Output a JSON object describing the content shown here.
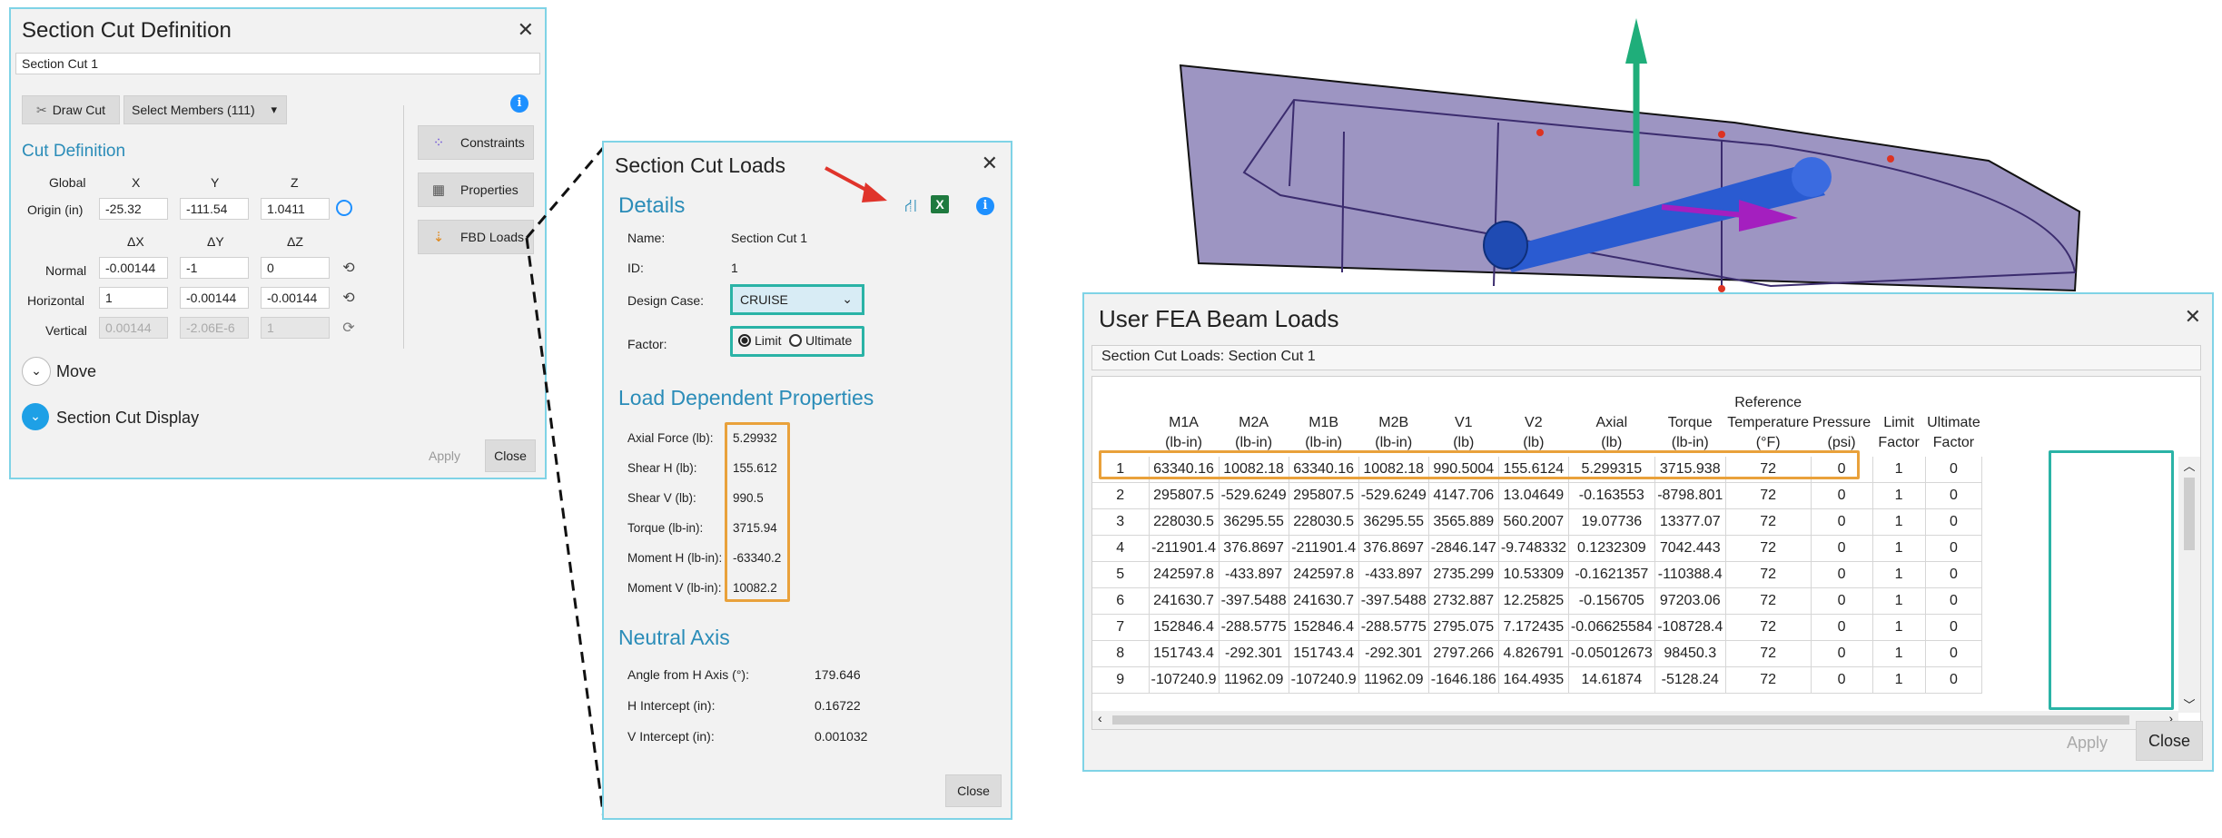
{
  "section_cut_definition": {
    "title": "Section Cut Definition",
    "name_value": "Section Cut 1",
    "draw_cut_label": "Draw Cut",
    "select_members_label": "Select Members (111)",
    "cut_definition_header": "Cut Definition",
    "col_global": "Global",
    "col_x": "X",
    "col_y": "Y",
    "col_z": "Z",
    "col_dx": "ΔX",
    "col_dy": "ΔY",
    "col_dz": "ΔZ",
    "origin_label": "Origin  (in)",
    "origin": [
      "-25.32",
      "-111.54",
      "1.0411"
    ],
    "normal_label": "Normal",
    "normal": [
      "-0.00144",
      "-1",
      "0"
    ],
    "horizontal_label": "Horizontal",
    "horizontal": [
      "1",
      "-0.00144",
      "-0.00144"
    ],
    "vertical_label": "Vertical",
    "vertical": [
      "0.00144",
      "-2.06E-6",
      "1"
    ],
    "constraints_label": "Constraints",
    "properties_label": "Properties",
    "fbd_loads_label": "FBD Loads",
    "move_label": "Move",
    "display_label": "Section Cut Display",
    "apply_label": "Apply",
    "close_label": "Close"
  },
  "section_cut_loads": {
    "title": "Section Cut Loads",
    "details_header": "Details",
    "name_label": "Name:",
    "name_value": "Section Cut 1",
    "id_label": "ID:",
    "id_value": "1",
    "design_case_label": "Design Case:",
    "design_case_value": "CRUISE",
    "factor_label": "Factor:",
    "factor_limit": "Limit",
    "factor_ultimate": "Ultimate",
    "ldp_header": "Load Dependent Properties",
    "ldp_rows": [
      {
        "label": "Axial Force (lb):",
        "value": "5.29932"
      },
      {
        "label": "Shear H (lb):",
        "value": "155.612"
      },
      {
        "label": "Shear V (lb):",
        "value": "990.5"
      },
      {
        "label": "Torque (lb-in):",
        "value": "3715.94"
      },
      {
        "label": "Moment H (lb-in):",
        "value": "-63340.2"
      },
      {
        "label": "Moment V (lb-in):",
        "value": "10082.2"
      }
    ],
    "neutral_header": "Neutral Axis",
    "neutral_rows": [
      {
        "label": "Angle from H Axis (°):",
        "value": "179.646"
      },
      {
        "label": "H Intercept (in):",
        "value": "0.16722"
      },
      {
        "label": "V Intercept (in):",
        "value": "0.001032"
      }
    ],
    "close_label": "Close"
  },
  "user_fea_beam_loads": {
    "title": "User FEA Beam Loads",
    "subtitle": "Section Cut Loads: Section Cut 1",
    "columns": [
      {
        "l1": "",
        "l2": "",
        "l3": ""
      },
      {
        "l1": "",
        "l2": "M1A",
        "l3": "(lb-in)"
      },
      {
        "l1": "",
        "l2": "M2A",
        "l3": "(lb-in)"
      },
      {
        "l1": "",
        "l2": "M1B",
        "l3": "(lb-in)"
      },
      {
        "l1": "",
        "l2": "M2B",
        "l3": "(lb-in)"
      },
      {
        "l1": "",
        "l2": "V1",
        "l3": "(lb)"
      },
      {
        "l1": "",
        "l2": "V2",
        "l3": "(lb)"
      },
      {
        "l1": "",
        "l2": "Axial",
        "l3": "(lb)"
      },
      {
        "l1": "",
        "l2": "Torque",
        "l3": "(lb-in)"
      },
      {
        "l1": "Reference",
        "l2": "Temperature",
        "l3": "(°F)"
      },
      {
        "l1": "",
        "l2": "Pressure",
        "l3": "(psi)"
      },
      {
        "l1": "",
        "l2": "Limit",
        "l3": "Factor"
      },
      {
        "l1": "",
        "l2": "Ultimate",
        "l3": "Factor"
      }
    ],
    "rows": [
      [
        "1",
        "63340.16",
        "10082.18",
        "63340.16",
        "10082.18",
        "990.5004",
        "155.6124",
        "5.299315",
        "3715.938",
        "72",
        "0",
        "1",
        "0"
      ],
      [
        "2",
        "295807.5",
        "-529.6249",
        "295807.5",
        "-529.6249",
        "4147.706",
        "13.04649",
        "-0.163553",
        "-8798.801",
        "72",
        "0",
        "1",
        "0"
      ],
      [
        "3",
        "228030.5",
        "36295.55",
        "228030.5",
        "36295.55",
        "3565.889",
        "560.2007",
        "19.07736",
        "13377.07",
        "72",
        "0",
        "1",
        "0"
      ],
      [
        "4",
        "-211901.4",
        "376.8697",
        "-211901.4",
        "376.8697",
        "-2846.147",
        "-9.748332",
        "0.1232309",
        "7042.443",
        "72",
        "0",
        "1",
        "0"
      ],
      [
        "5",
        "242597.8",
        "-433.897",
        "242597.8",
        "-433.897",
        "2735.299",
        "10.53309",
        "-0.1621357",
        "-110388.4",
        "72",
        "0",
        "1",
        "0"
      ],
      [
        "6",
        "241630.7",
        "-397.5488",
        "241630.7",
        "-397.5488",
        "2732.887",
        "12.25825",
        "-0.156705",
        "97203.06",
        "72",
        "0",
        "1",
        "0"
      ],
      [
        "7",
        "152846.4",
        "-288.5775",
        "152846.4",
        "-288.5775",
        "2795.075",
        "7.172435",
        "-0.06625584",
        "-108728.4",
        "72",
        "0",
        "1",
        "0"
      ],
      [
        "8",
        "151743.4",
        "-292.301",
        "151743.4",
        "-292.301",
        "2797.266",
        "4.826791",
        "-0.05012673",
        "98450.3",
        "72",
        "0",
        "1",
        "0"
      ],
      [
        "9",
        "-107240.9",
        "11962.09",
        "-107240.9",
        "11962.09",
        "-1646.186",
        "164.4935",
        "14.61874",
        "-5128.24",
        "72",
        "0",
        "1",
        "0"
      ]
    ],
    "apply_label": "Apply",
    "close_label": "Close"
  },
  "icons": {
    "draw_cut": "scissors-icon",
    "constraints": "constraints-icon",
    "properties": "calculator-icon",
    "fbd_loads": "fbd-icon",
    "export": "export-icon",
    "excel": "excel-icon",
    "info": "info-icon"
  },
  "colors": {
    "accent": "#2a8cb8",
    "highlight_orange": "#e9a13b",
    "highlight_teal": "#2ab3a6",
    "panel_border": "#7fd3e6",
    "model_plane": "#9b92bf"
  }
}
